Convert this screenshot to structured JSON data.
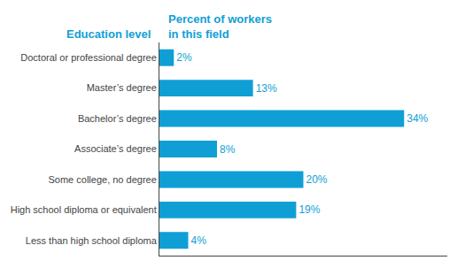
{
  "chart_data": {
    "type": "bar",
    "orientation": "horizontal",
    "ylabel": "Education level",
    "xlabel": "Percent of workers\nin this field",
    "categories": [
      "Doctoral or professional degree",
      "Master’s degree",
      "Bachelor’s degree",
      "Associate’s degree",
      "Some college, no degree",
      "High school diploma or equivalent",
      "Less than high school diploma"
    ],
    "values": [
      2,
      13,
      34,
      8,
      20,
      19,
      4
    ],
    "value_labels": [
      "2%",
      "13%",
      "34%",
      "8%",
      "20%",
      "19%",
      "4%"
    ],
    "data_labels": true,
    "color": "#0f9fd5",
    "xlim": [
      0,
      40
    ],
    "grid": false,
    "tick_labels": "y"
  }
}
